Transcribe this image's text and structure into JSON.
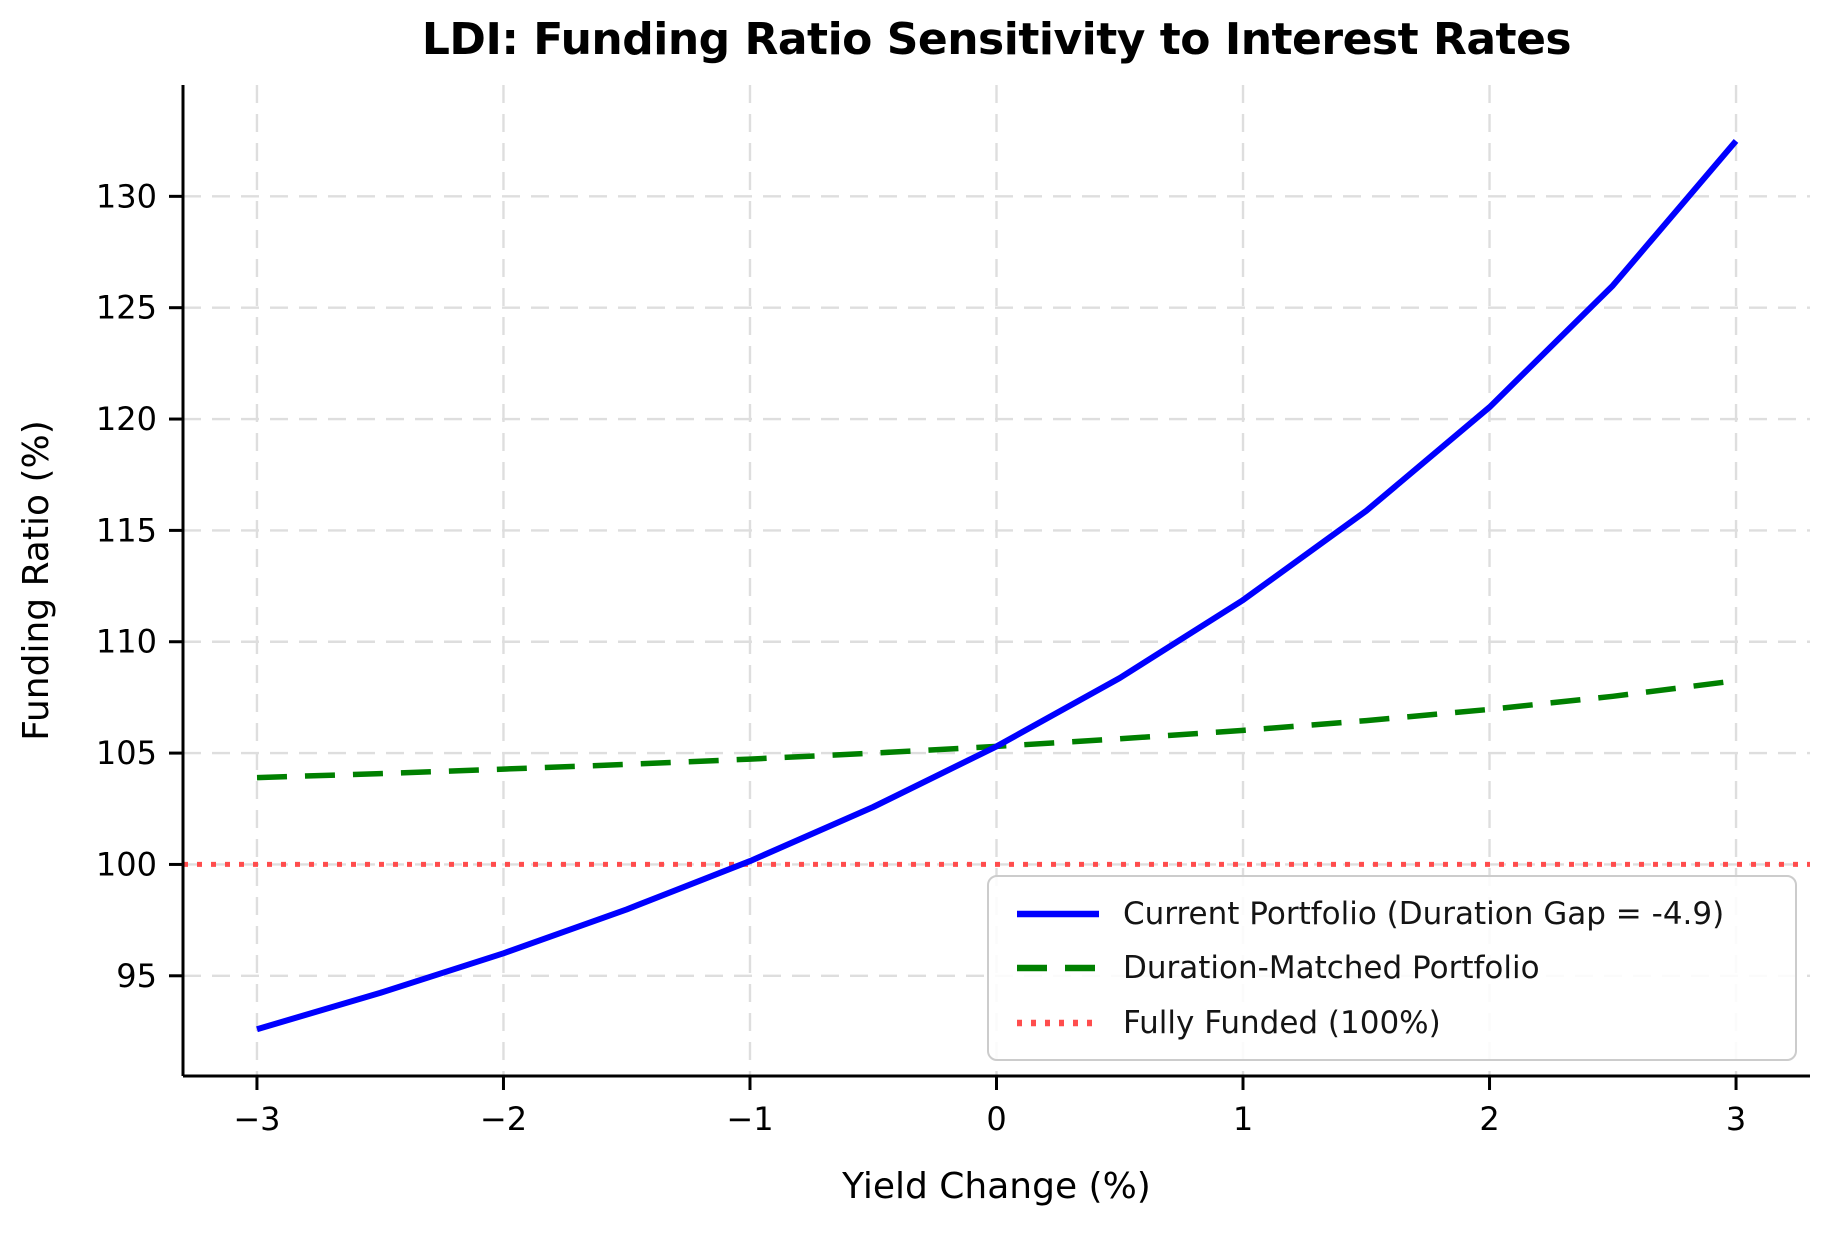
{
  "title": "LDI: Funding Ratio Sensitivity to Interest Rates",
  "chart_data": {
    "type": "line",
    "title": "LDI: Funding Ratio Sensitivity to Interest Rates",
    "xlabel": "Yield Change (%)",
    "ylabel": "Funding Ratio (%)",
    "xlim": [
      -3.3,
      3.3
    ],
    "ylim": [
      90.5,
      135
    ],
    "xticks": [
      -3,
      -2,
      -1,
      0,
      1,
      2,
      3
    ],
    "yticks": [
      95,
      100,
      105,
      110,
      115,
      120,
      125,
      130
    ],
    "grid": true,
    "grid_style": "dashed",
    "legend_position": "lower right",
    "x": [
      -3,
      -2.5,
      -2,
      -1.5,
      -1,
      -0.5,
      0,
      0.5,
      1,
      1.5,
      2,
      2.5,
      3
    ],
    "series": [
      {
        "name": "Current Portfolio (Duration Gap = -4.9)",
        "color": "#0000ff",
        "style": "solid",
        "width": 6,
        "span": "data",
        "values": [
          92.6,
          94.23,
          96.01,
          97.98,
          100.15,
          102.58,
          105.3,
          108.37,
          111.87,
          115.88,
          120.53,
          125.99,
          132.49
        ]
      },
      {
        "name": "Duration-Matched Portfolio",
        "color": "#008000",
        "style": "dashed",
        "width": 5.5,
        "span": "data",
        "values": [
          103.9,
          104.08,
          104.28,
          104.49,
          104.73,
          105.0,
          105.3,
          105.64,
          106.02,
          106.46,
          106.96,
          107.55,
          108.25
        ]
      },
      {
        "name": "Fully Funded (100%)",
        "color": "#ff4d4d",
        "style": "dotted",
        "width": 5,
        "span": "full",
        "values": [
          100,
          100,
          100,
          100,
          100,
          100,
          100,
          100,
          100,
          100,
          100,
          100,
          100
        ]
      }
    ]
  }
}
